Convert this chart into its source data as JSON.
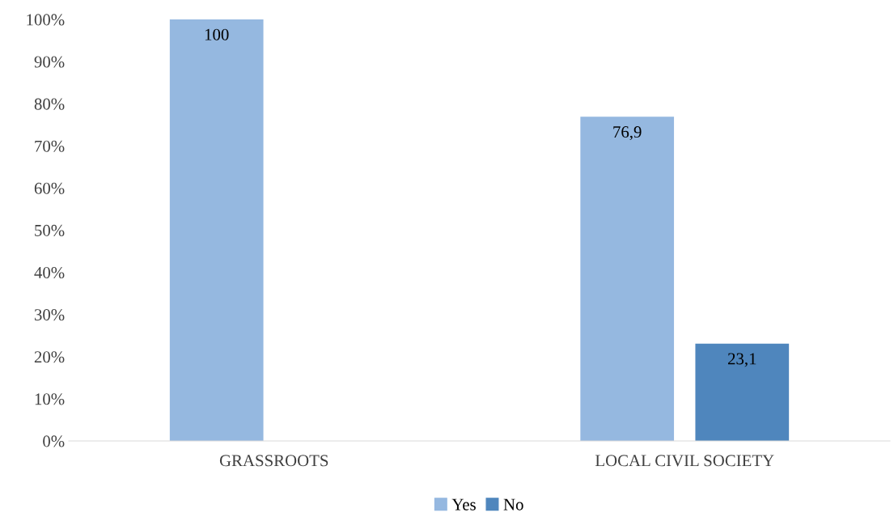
{
  "chart_data": {
    "type": "bar",
    "categories": [
      "GRASSROOTS",
      "LOCAL CIVIL SOCIETY"
    ],
    "series": [
      {
        "name": "Yes",
        "color": "#95b8e0",
        "values": [
          100,
          76.9
        ],
        "value_labels": [
          "100",
          "76,9"
        ]
      },
      {
        "name": "No",
        "color": "#4f86bd",
        "values": [
          null,
          23.1
        ],
        "value_labels": [
          null,
          "23,1"
        ]
      }
    ],
    "ylim": [
      0,
      100
    ],
    "yticks": [
      {
        "value": 0,
        "label": "0%"
      },
      {
        "value": 10,
        "label": "10%"
      },
      {
        "value": 20,
        "label": "20%"
      },
      {
        "value": 30,
        "label": "30%"
      },
      {
        "value": 40,
        "label": "40%"
      },
      {
        "value": 50,
        "label": "50%"
      },
      {
        "value": 60,
        "label": "60%"
      },
      {
        "value": 70,
        "label": "70%"
      },
      {
        "value": 80,
        "label": "80%"
      },
      {
        "value": 90,
        "label": "90%"
      },
      {
        "value": 100,
        "label": "100%"
      }
    ],
    "grid": false,
    "legend": "bottom"
  }
}
